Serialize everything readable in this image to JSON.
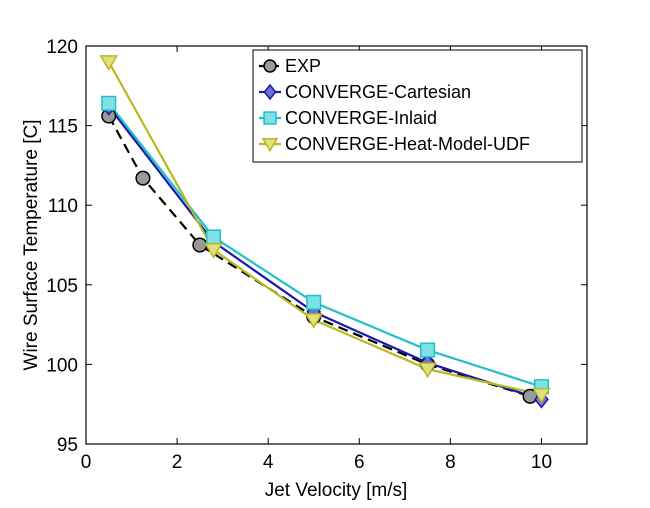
{
  "chart_data": {
    "type": "line",
    "xlabel": "Jet Velocity [m/s]",
    "ylabel": "Wire Surface Temperature [C]",
    "xlim": [
      0,
      11
    ],
    "ylim": [
      95,
      120
    ],
    "xticks": [
      0,
      2,
      4,
      6,
      8,
      10
    ],
    "yticks": [
      95,
      100,
      105,
      110,
      115,
      120
    ],
    "xtick_labels": [
      "0",
      "2",
      "4",
      "6",
      "8",
      "10"
    ],
    "ytick_labels": [
      "95",
      "100",
      "105",
      "110",
      "115",
      "120"
    ],
    "grid": false,
    "legend_position": "top-right",
    "series": [
      {
        "name": "EXP",
        "color": "#000000",
        "marker_fill": "#9a9a9a",
        "marker": "circle",
        "line_style": "dashed",
        "x": [
          0.5,
          1.25,
          2.5,
          5.0,
          7.5,
          9.75
        ],
        "y": [
          115.6,
          111.7,
          107.5,
          103.0,
          100.0,
          98.0
        ]
      },
      {
        "name": "CONVERGE-Cartesian",
        "color": "#1a1aa8",
        "marker_fill": "#7070d8",
        "marker": "diamond",
        "line_style": "solid",
        "x": [
          0.5,
          2.8,
          5.0,
          7.5,
          10.0
        ],
        "y": [
          116.2,
          107.7,
          103.3,
          100.1,
          97.8
        ]
      },
      {
        "name": "CONVERGE-Inlaid",
        "color": "#20c0c8",
        "marker_fill": "#80e0e8",
        "marker": "square",
        "line_style": "solid",
        "x": [
          0.5,
          2.8,
          5.0,
          7.5,
          10.0
        ],
        "y": [
          116.4,
          108.0,
          103.9,
          100.9,
          98.6
        ]
      },
      {
        "name": "CONVERGE-Heat-Model-UDF",
        "color": "#b8b820",
        "marker_fill": "#e0e080",
        "marker": "triangle-down",
        "line_style": "solid",
        "x": [
          0.5,
          2.8,
          5.0,
          7.5,
          10.0
        ],
        "y": [
          119.0,
          107.2,
          102.8,
          99.7,
          98.1
        ]
      }
    ]
  }
}
